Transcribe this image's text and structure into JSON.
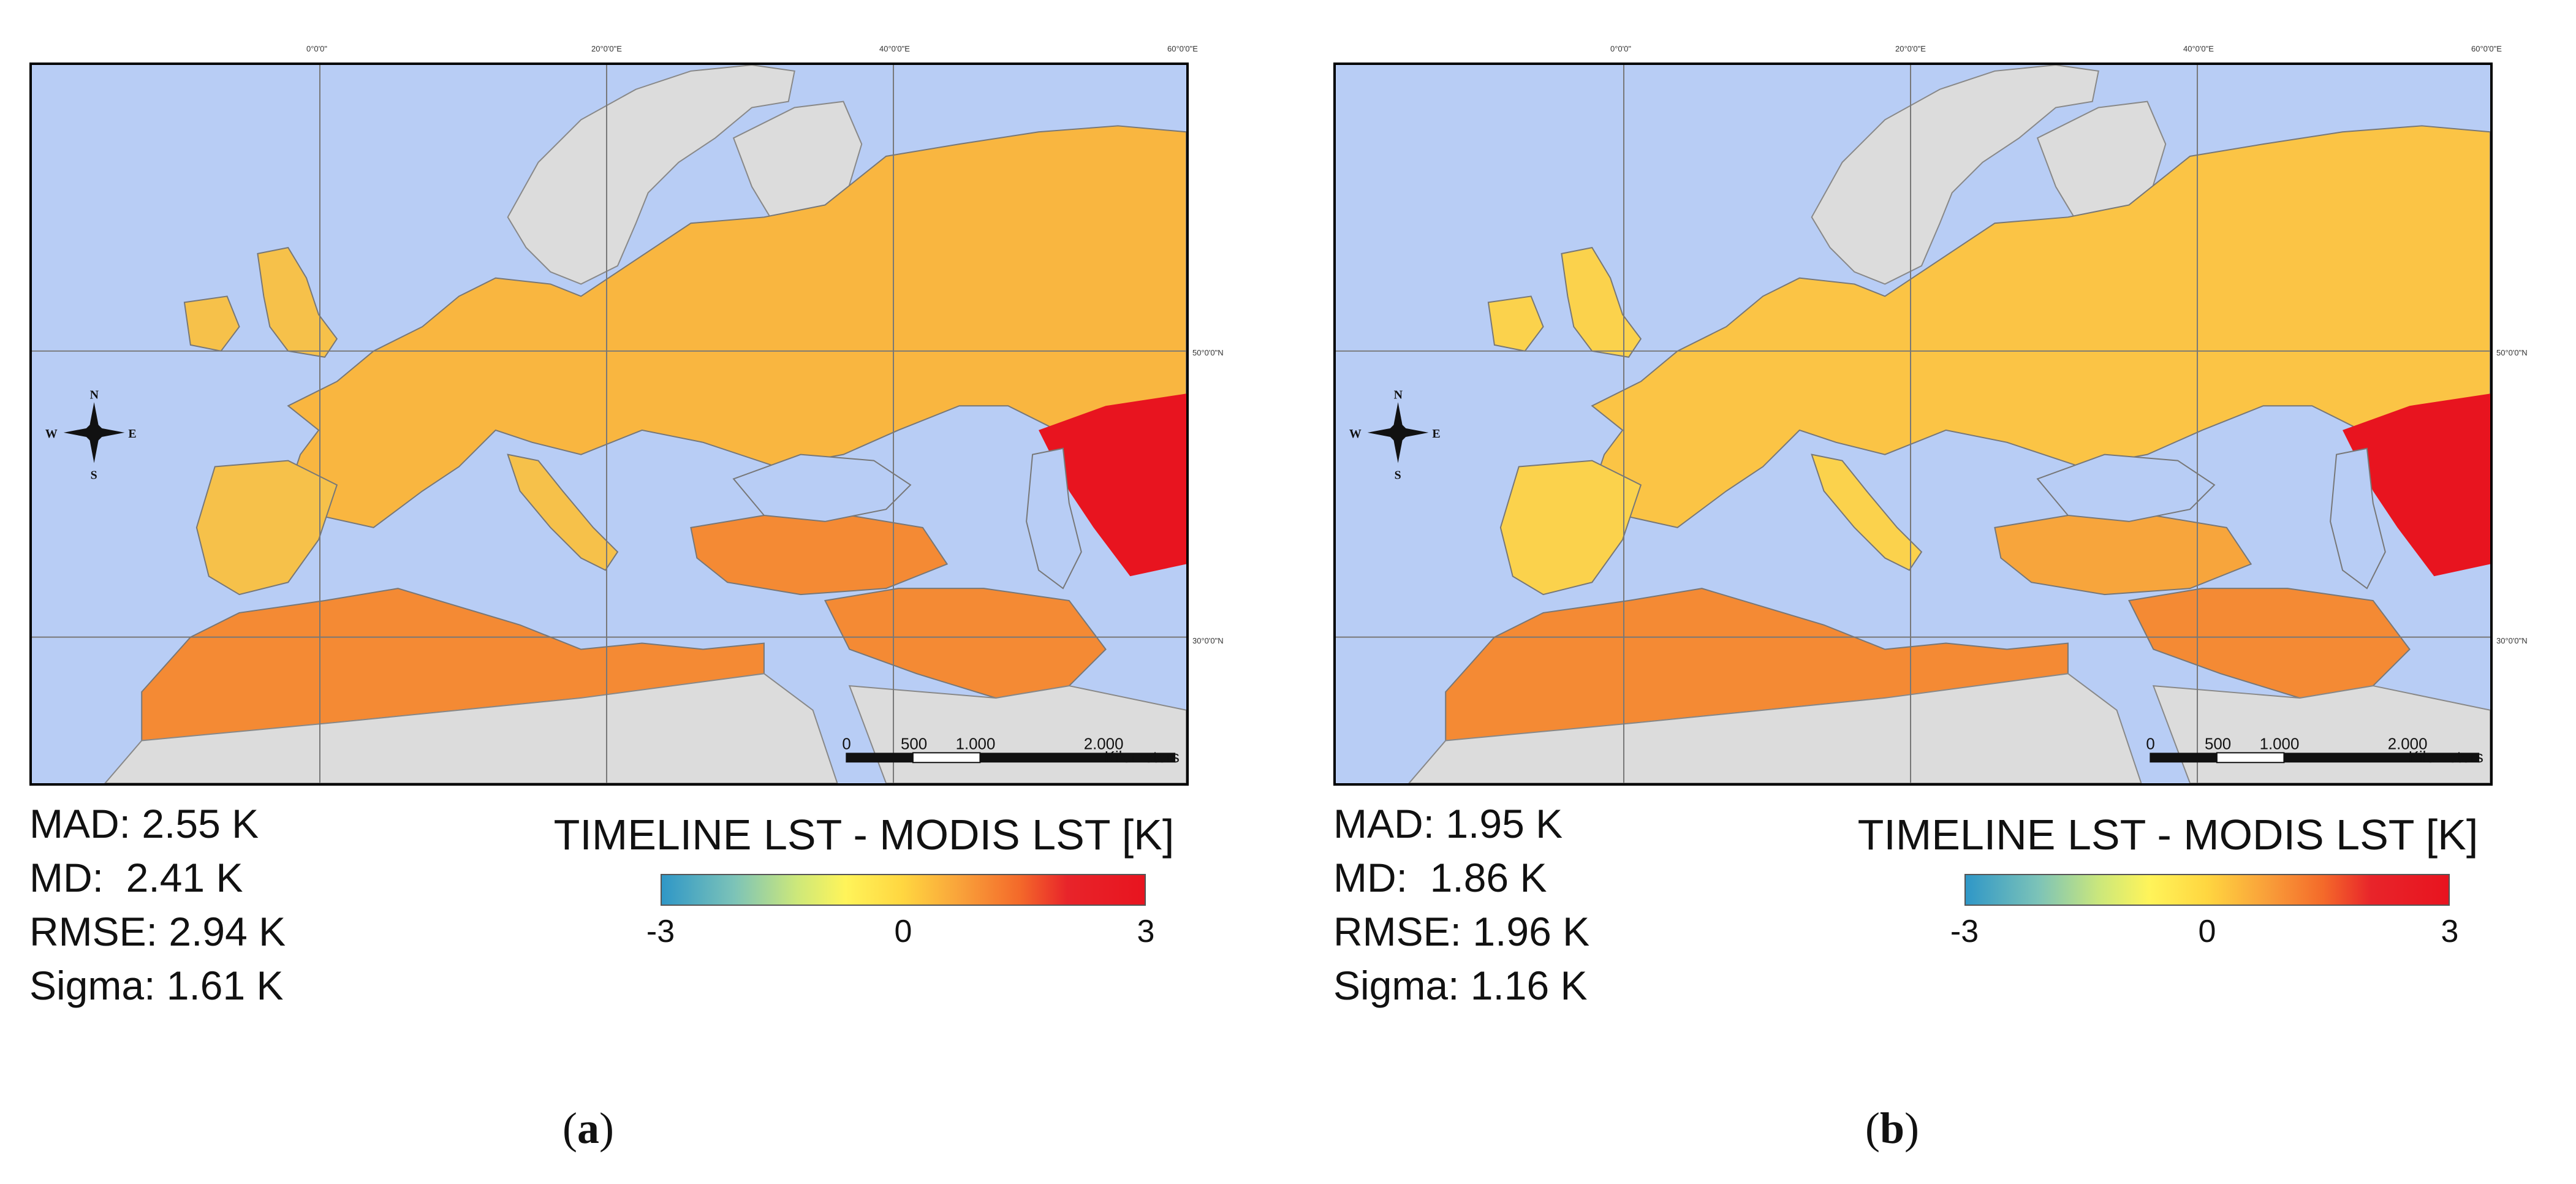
{
  "legend": {
    "title": "TIMELINE LST - MODIS LST [K]",
    "tick_min": "-3",
    "tick_mid": "0",
    "tick_max": "3",
    "colors": [
      "#2f97c7",
      "#cde87a",
      "#fff45a",
      "#f9a13a",
      "#e8141f"
    ]
  },
  "map_labels": {
    "lon_0": "0°0'0\"",
    "lon_20": "20°0'0\"E",
    "lon_40": "40°0'0\"E",
    "lon_60": "60°0'0\"E",
    "lat_50": "50°0'0\"N",
    "lat_30": "30°0'0\"N",
    "compass_n": "N",
    "compass_s": "S",
    "compass_e": "E",
    "compass_w": "W",
    "scale_0": "0",
    "scale_500": "500",
    "scale_1000": "1.000",
    "scale_2000": "2.000",
    "scale_unit": "Kilometers"
  },
  "colors": {
    "sea": "#b8cdf5",
    "land_nodata": "#dcdcdc",
    "low": "#fff45a",
    "mid": "#f9a13a",
    "high": "#e8141f"
  },
  "panels": [
    {
      "label": "a",
      "stats": {
        "mad": "MAD: 2.55 K",
        "md": "MD:  2.41 K",
        "rmse": "RMSE: 2.94 K",
        "sigma": "Sigma: 1.61 K"
      }
    },
    {
      "label": "b",
      "stats": {
        "mad": "MAD: 1.95 K",
        "md": "MD:  1.86 K",
        "rmse": "RMSE: 1.96 K",
        "sigma": "Sigma: 1.16 K"
      }
    }
  ]
}
